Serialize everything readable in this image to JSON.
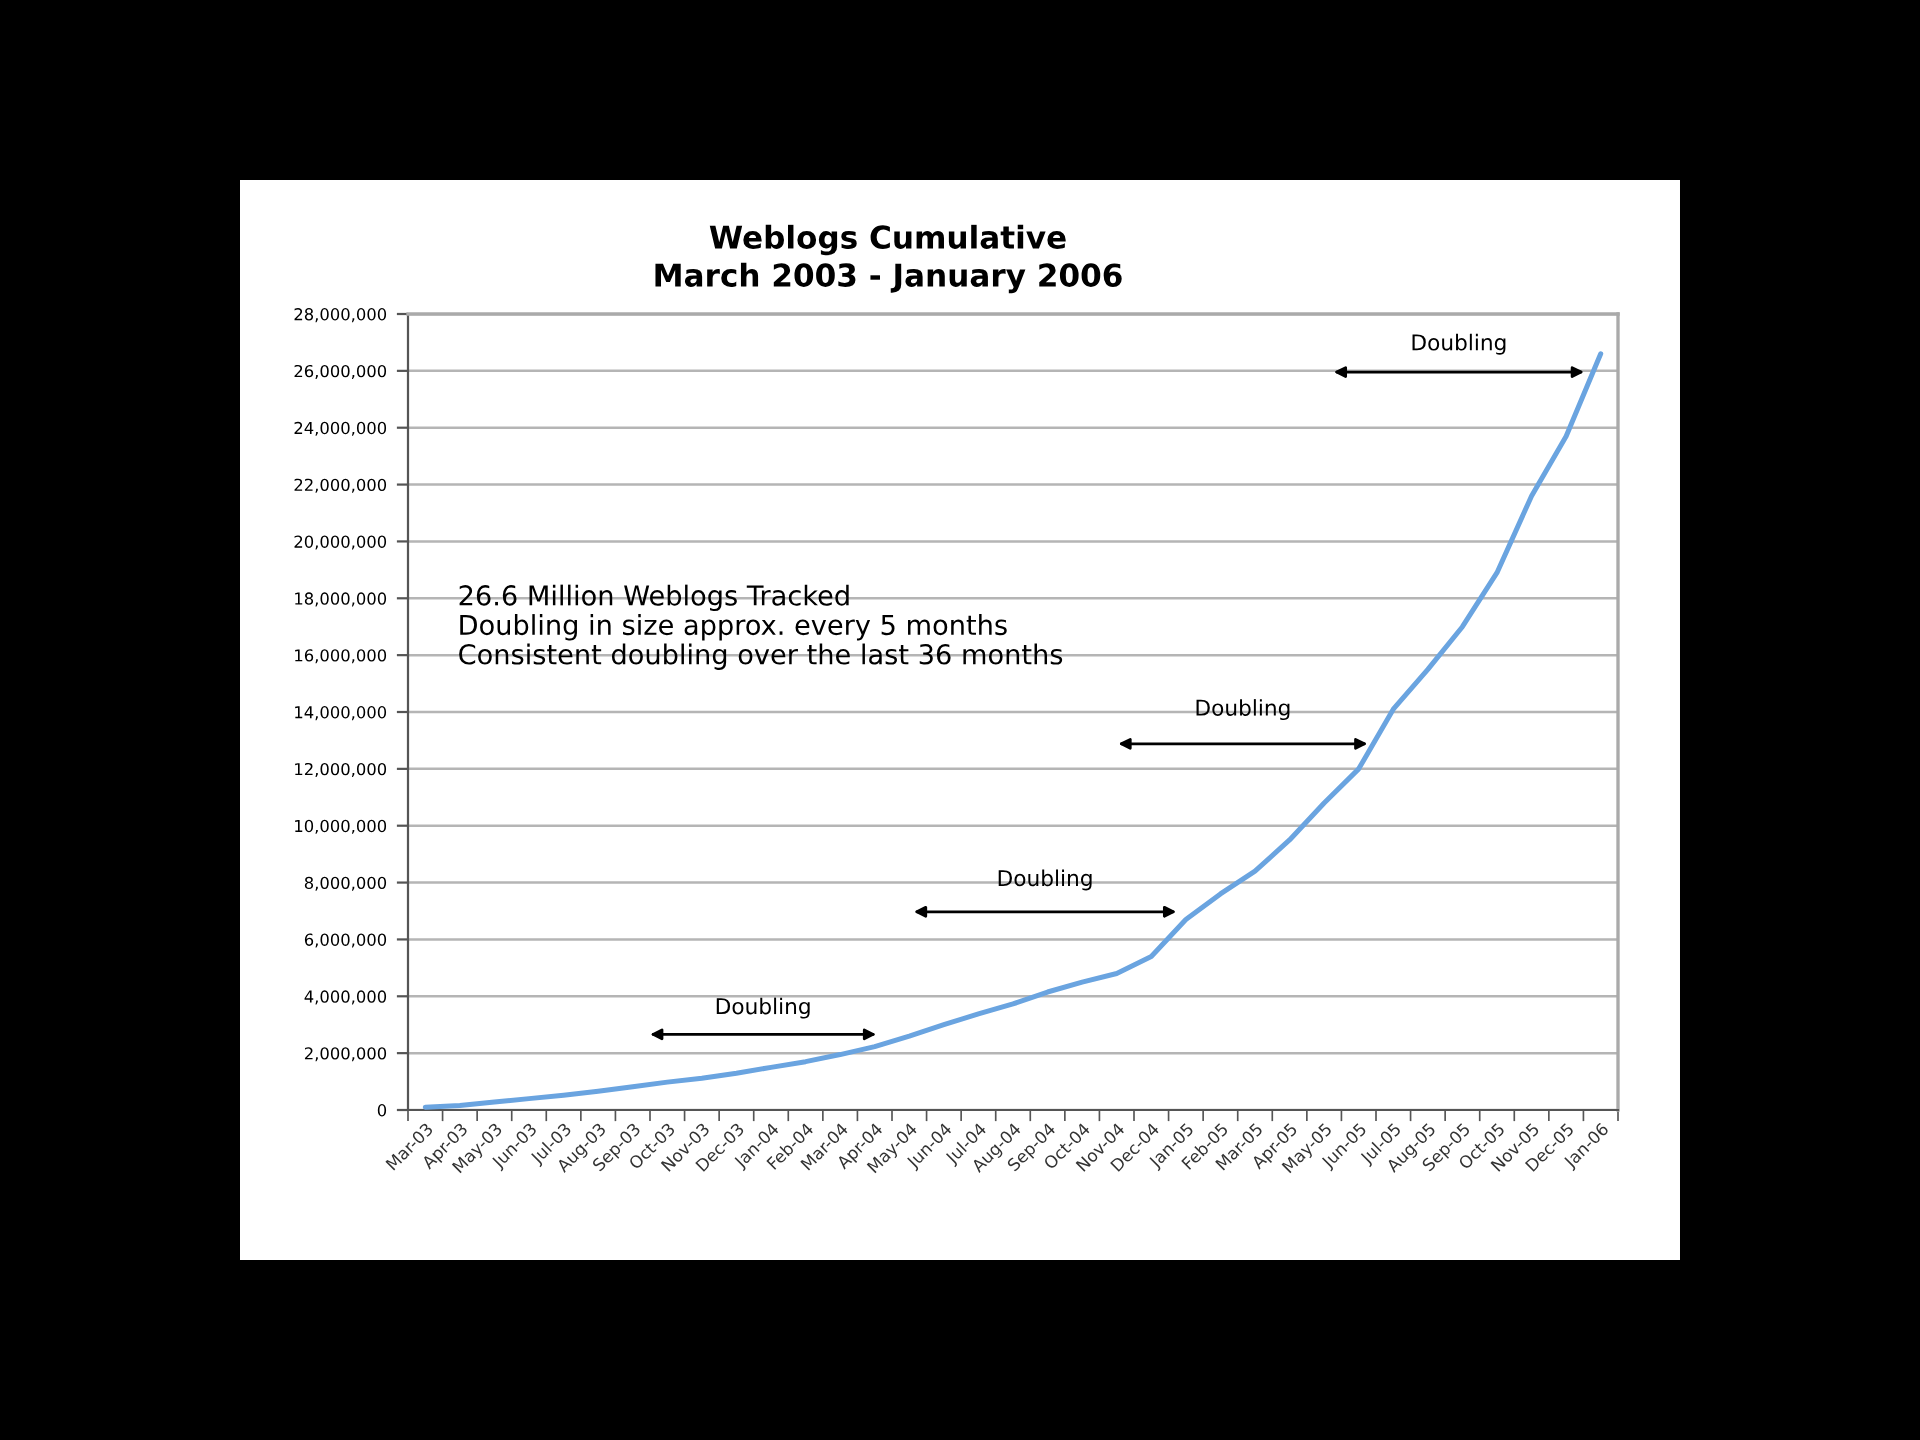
{
  "chart_data": {
    "type": "line",
    "title": "Weblogs Cumulative",
    "subtitle": "March 2003 - January 2006",
    "categories": [
      "Mar-03",
      "Apr-03",
      "May-03",
      "Jun-03",
      "Jul-03",
      "Aug-03",
      "Sep-03",
      "Oct-03",
      "Nov-03",
      "Dec-03",
      "Jan-04",
      "Feb-04",
      "Mar-04",
      "Apr-04",
      "May-04",
      "Jun-04",
      "Jul-04",
      "Aug-04",
      "Sep-04",
      "Oct-04",
      "Nov-04",
      "Dec-04",
      "Jan-05",
      "Feb-05",
      "Mar-05",
      "Apr-05",
      "May-05",
      "Jun-05",
      "Jul-05",
      "Aug-05",
      "Sep-05",
      "Oct-05",
      "Nov-05",
      "Dec-05",
      "Jan-06"
    ],
    "values": [
      100000,
      160000,
      280000,
      400000,
      520000,
      660000,
      820000,
      980000,
      1120000,
      1290000,
      1500000,
      1700000,
      1950000,
      2230000,
      2600000,
      3000000,
      3380000,
      3730000,
      4150000,
      4500000,
      4800000,
      5400000,
      6700000,
      7600000,
      8400000,
      9500000,
      10800000,
      12000000,
      14100000,
      15500000,
      17000000,
      18900000,
      21600000,
      23700000,
      26600000
    ],
    "color": "#6aa4e0",
    "ylim": [
      0,
      28000000
    ],
    "yticks": [
      0,
      {
        "value": 2000000,
        "label": "2,000,000"
      },
      {
        "value": 4000000,
        "label": "4,000,000"
      },
      {
        "value": 6000000,
        "label": "6,000,000"
      },
      {
        "value": 8000000,
        "label": "8,000,000"
      },
      {
        "value": 10000000,
        "label": "10,000,000"
      },
      {
        "value": 12000000,
        "label": "12,000,000"
      },
      {
        "value": 14000000,
        "label": "14,000,000"
      },
      {
        "value": 16000000,
        "label": "16,000,000"
      },
      {
        "value": 18000000,
        "label": "18,000,000"
      },
      {
        "value": 20000000,
        "label": "20,000,000"
      },
      {
        "value": 22000000,
        "label": "22,000,000"
      },
      {
        "value": 24000000,
        "label": "24,000,000"
      },
      {
        "value": 26000000,
        "label": "26,000,000"
      },
      {
        "value": 28000000,
        "label": "28,000,000"
      }
    ],
    "grid": "y",
    "annotations": [
      "26.6 Million Weblogs Tracked\nDoubling in size approx. every 5 months\nConsistent doubling over the last 36 months",
      "Doubling",
      "Doubling",
      "Doubling",
      "Doubling"
    ]
  }
}
